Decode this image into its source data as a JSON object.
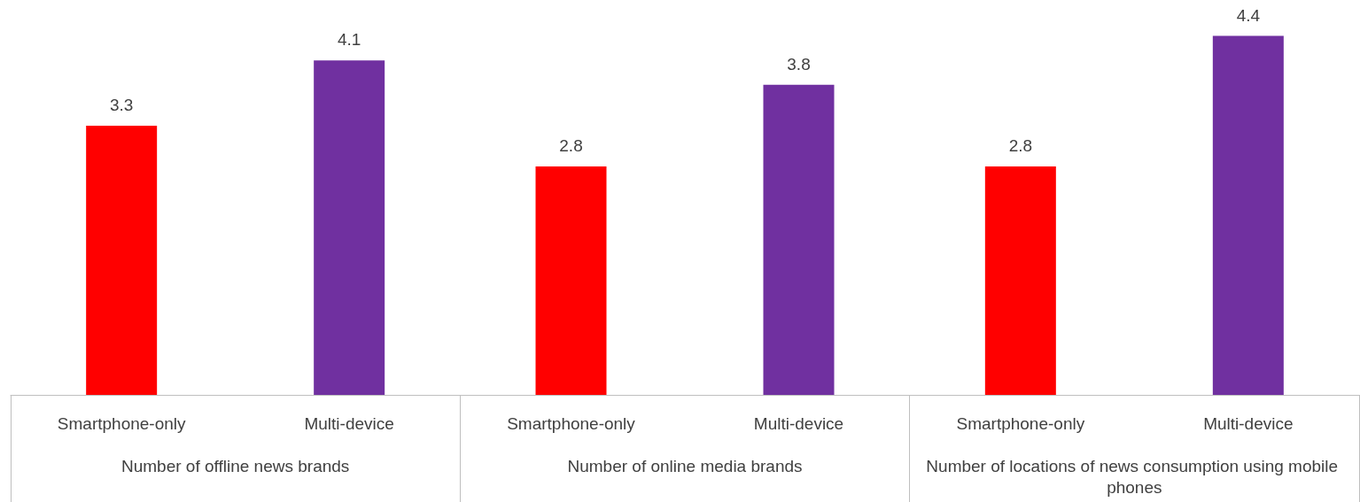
{
  "chart_data": {
    "type": "bar",
    "categories": [
      "Number of offline news brands",
      "Number of online media brands",
      "Number of locations of news consumption using mobile phones"
    ],
    "series": [
      {
        "name": "Smartphone-only",
        "color": "#ff0000",
        "values": [
          3.3,
          2.8,
          2.8
        ]
      },
      {
        "name": "Multi-device",
        "color": "#7030a0",
        "values": [
          4.1,
          3.8,
          4.4
        ]
      }
    ],
    "data_labels": true,
    "grid": false,
    "legend": false
  }
}
